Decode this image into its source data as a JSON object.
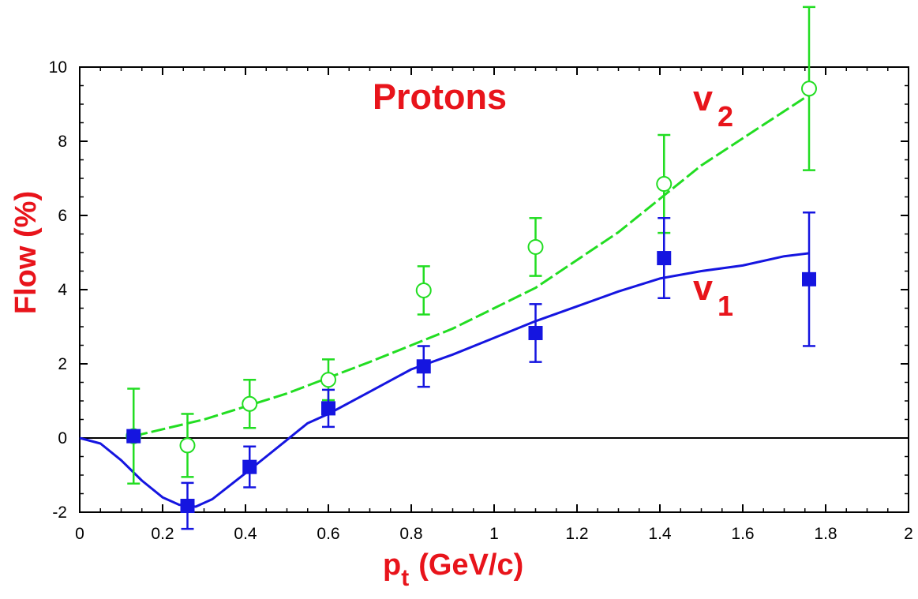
{
  "chart_data": {
    "type": "scatter",
    "title": "Protons",
    "xlabel": "p",
    "xlabel_sub": "t",
    "xlabel_unit": "(GeV/c)",
    "ylabel": "Flow (%)",
    "xlim": [
      0,
      2
    ],
    "ylim": [
      -2,
      10
    ],
    "x_ticks": [
      "0",
      "0.2",
      "0.4",
      "0.6",
      "0.8",
      "1",
      "1.2",
      "1.4",
      "1.6",
      "1.8",
      "2"
    ],
    "y_ticks": [
      "-2",
      "0",
      "2",
      "4",
      "6",
      "8",
      "10"
    ],
    "colors": {
      "v1": "#1515e0",
      "v2": "#22dd22",
      "labels": "#e8141b",
      "axis": "#000000"
    },
    "series": [
      {
        "name": "v2",
        "label_main": "v",
        "label_sub": "2",
        "marker": "open-circle",
        "points": [
          {
            "x": 0.13,
            "y": 0.05,
            "err": 1.28
          },
          {
            "x": 0.26,
            "y": -0.2,
            "err": 0.85
          },
          {
            "x": 0.41,
            "y": 0.92,
            "err": 0.65
          },
          {
            "x": 0.6,
            "y": 1.57,
            "err": 0.55
          },
          {
            "x": 0.83,
            "y": 3.98,
            "err": 0.65
          },
          {
            "x": 1.1,
            "y": 5.15,
            "err": 0.78
          },
          {
            "x": 1.41,
            "y": 6.85,
            "err": 1.32
          },
          {
            "x": 1.76,
            "y": 9.42,
            "err": 2.2
          }
        ],
        "model_curve": {
          "style": "dashed",
          "x": [
            0.13,
            0.3,
            0.5,
            0.7,
            0.9,
            1.1,
            1.3,
            1.5,
            1.76
          ],
          "y": [
            0.05,
            0.5,
            1.2,
            2.05,
            2.95,
            4.05,
            5.55,
            7.35,
            9.25
          ]
        }
      },
      {
        "name": "v1",
        "label_main": "v",
        "label_sub": "1",
        "marker": "filled-square",
        "points": [
          {
            "x": 0.13,
            "y": 0.05,
            "err": 0.0
          },
          {
            "x": 0.26,
            "y": -1.83,
            "err": 0.62
          },
          {
            "x": 0.41,
            "y": -0.78,
            "err": 0.55
          },
          {
            "x": 0.6,
            "y": 0.8,
            "err": 0.5
          },
          {
            "x": 0.83,
            "y": 1.93,
            "err": 0.55
          },
          {
            "x": 1.1,
            "y": 2.83,
            "err": 0.78
          },
          {
            "x": 1.41,
            "y": 4.85,
            "err": 1.08
          },
          {
            "x": 1.76,
            "y": 4.28,
            "err": 1.8
          }
        ],
        "model_curve": {
          "style": "solid",
          "x": [
            0,
            0.05,
            0.1,
            0.15,
            0.2,
            0.24,
            0.28,
            0.32,
            0.36,
            0.4,
            0.45,
            0.5,
            0.55,
            0.6,
            0.7,
            0.8,
            0.9,
            1.0,
            1.1,
            1.2,
            1.3,
            1.4,
            1.5,
            1.6,
            1.7,
            1.76
          ],
          "y": [
            0,
            -0.15,
            -0.6,
            -1.15,
            -1.6,
            -1.8,
            -1.85,
            -1.65,
            -1.3,
            -0.95,
            -0.5,
            -0.05,
            0.4,
            0.65,
            1.25,
            1.85,
            2.25,
            2.7,
            3.15,
            3.55,
            3.95,
            4.3,
            4.5,
            4.65,
            4.9,
            4.98
          ]
        }
      }
    ]
  }
}
